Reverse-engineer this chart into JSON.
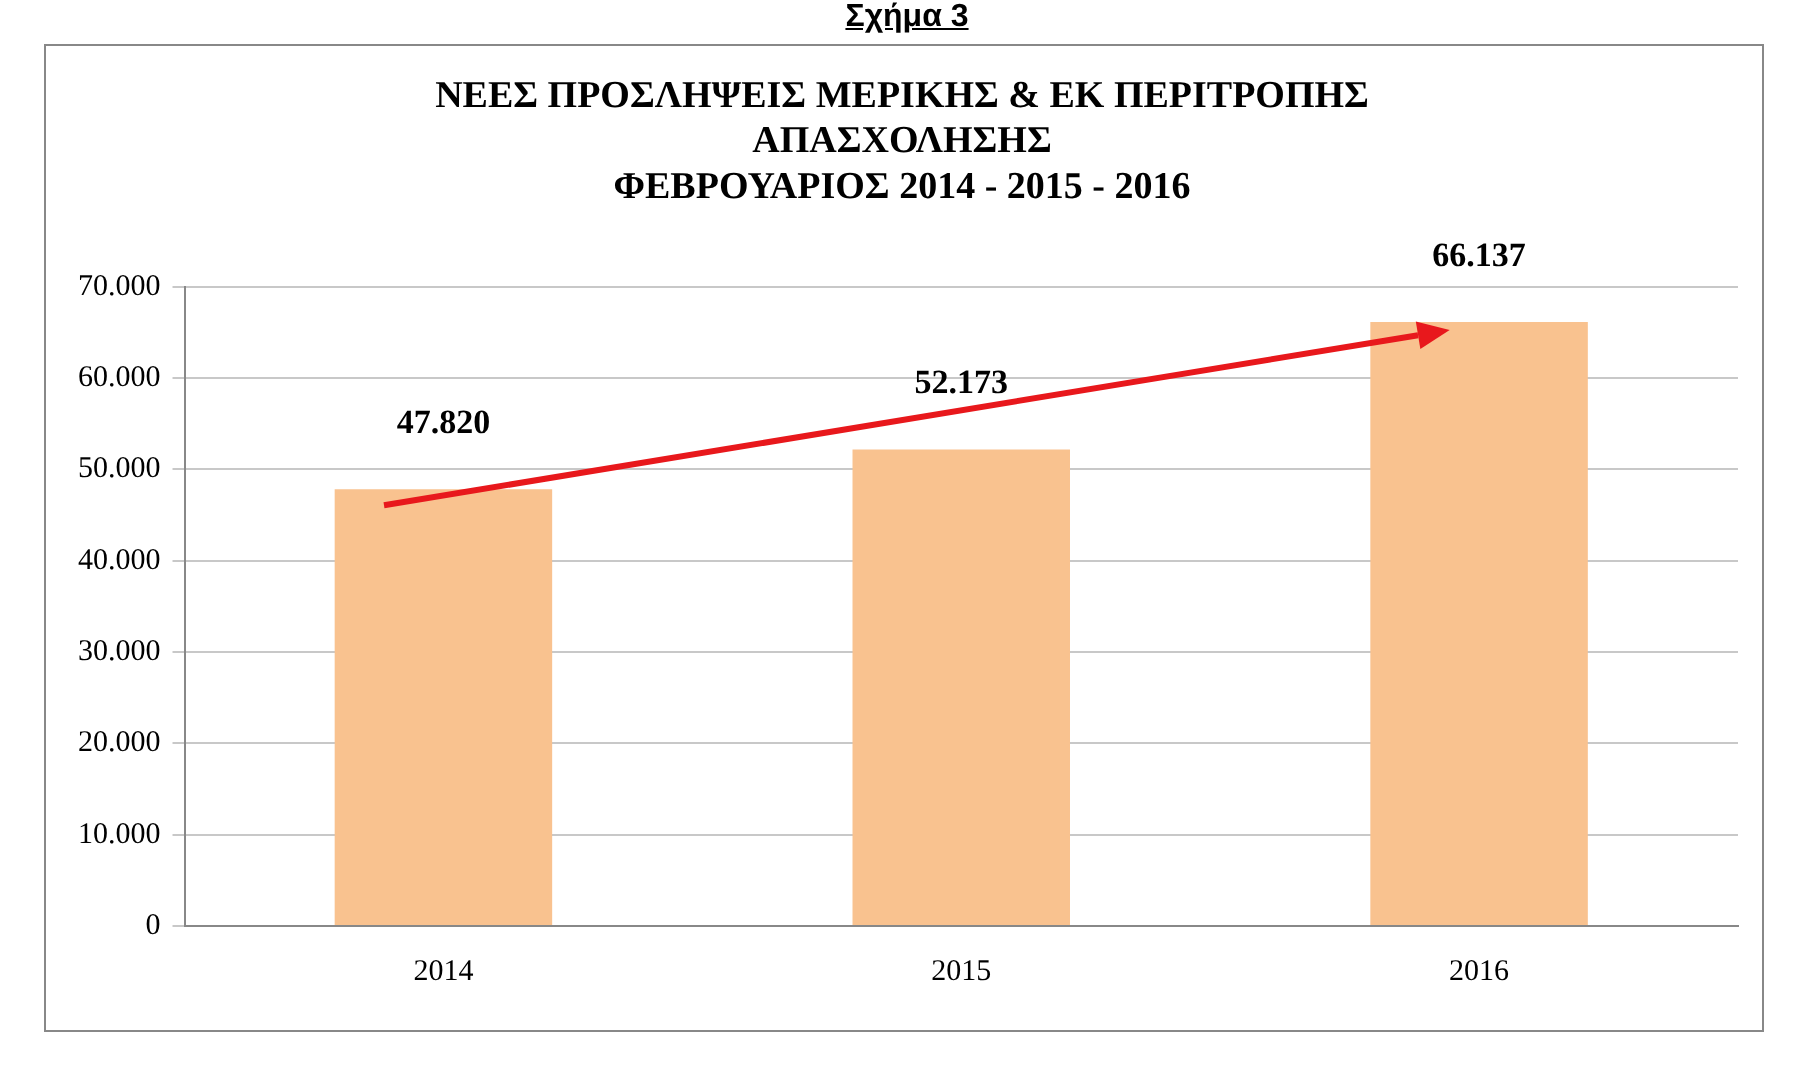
{
  "chart_data": {
    "type": "bar",
    "title": [
      "ΝΕΕΣ ΠΡΟΣΛΗΨΕΙΣ ΜΕΡΙΚΗΣ & ΕΚ ΠΕΡΙΤΡΟΠΗΣ",
      "ΑΠΑΣΧΟΛΗΣΗΣ",
      "ΦΕΒΡΟΥΑΡΙΟΣ 2014 - 2015 - 2016"
    ],
    "annotations": [
      "Σχήμα 3"
    ],
    "categories": [
      "2014",
      "2015",
      "2016"
    ],
    "values": [
      47820,
      52173,
      66137
    ],
    "value_labels": [
      "47.820",
      "52.173",
      "66.137"
    ],
    "color": "#f9c28f",
    "ylim": [
      0,
      70000
    ],
    "yticks": [
      {
        "value": 0,
        "label": "0"
      },
      {
        "value": 10000,
        "label": "10.000"
      },
      {
        "value": 20000,
        "label": "20.000"
      },
      {
        "value": 30000,
        "label": "30.000"
      },
      {
        "value": 40000,
        "label": "40.000"
      },
      {
        "value": 50000,
        "label": "50.000"
      },
      {
        "value": 60000,
        "label": "60.000"
      },
      {
        "value": 70000,
        "label": "70.000"
      }
    ],
    "grid": "y",
    "legend": false
  }
}
